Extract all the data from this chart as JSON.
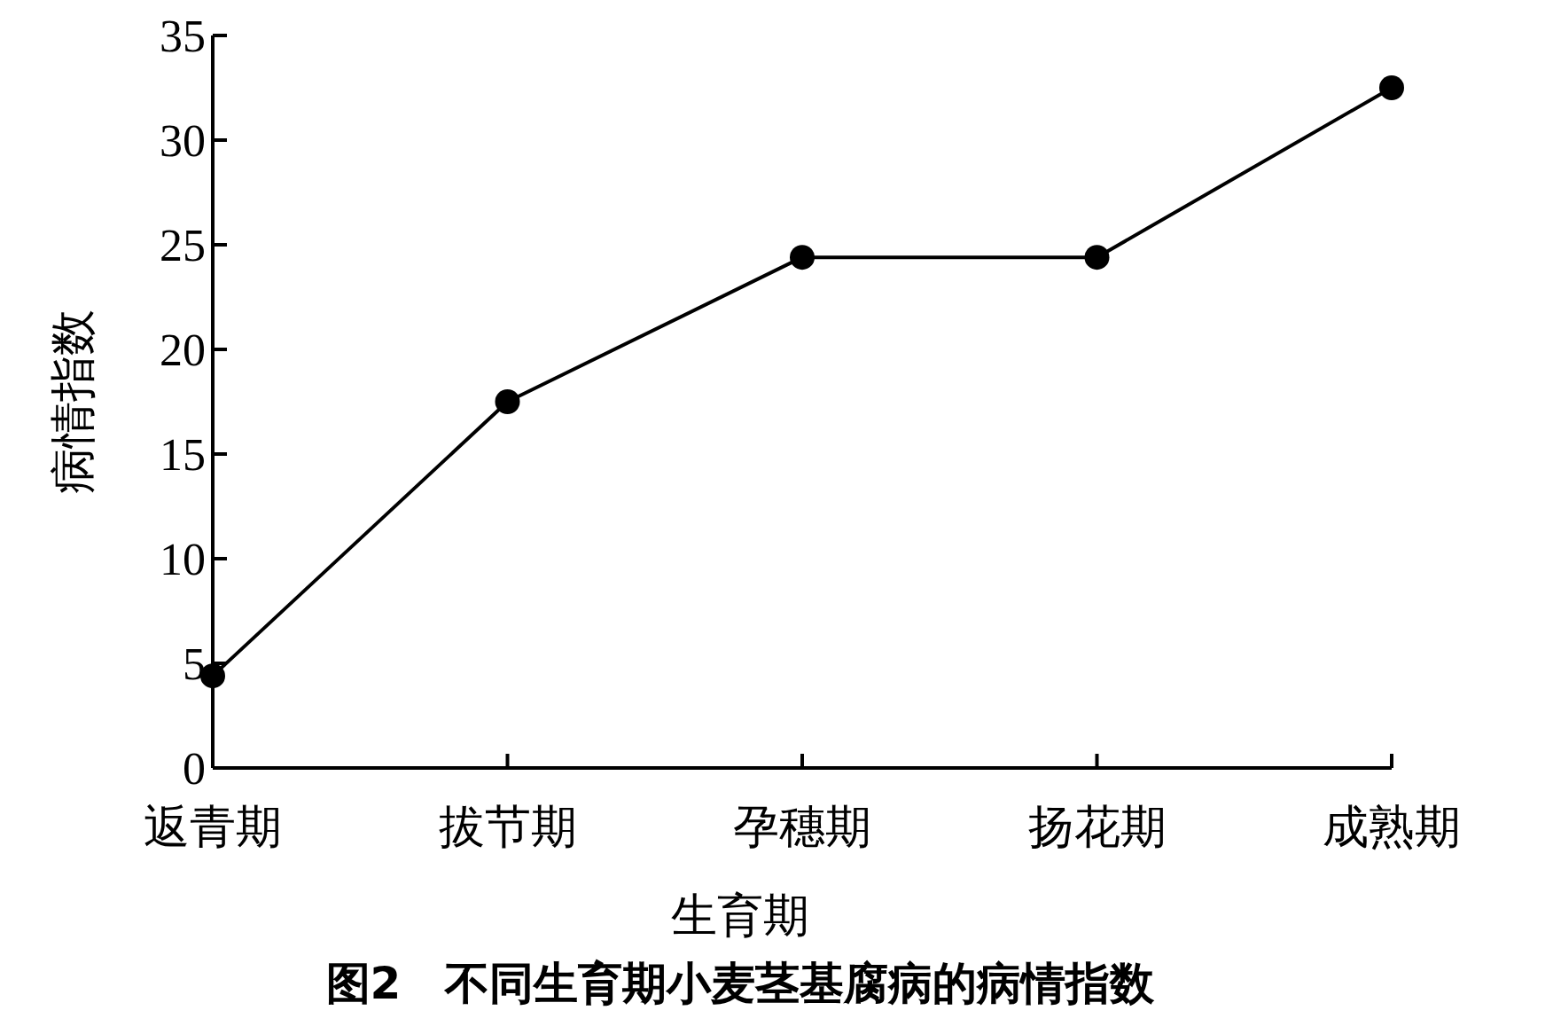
{
  "chart_data": {
    "type": "line",
    "title": "图2　不同生育期小麦茎基腐病的病情指数",
    "xlabel": "生育期",
    "ylabel": "病情指数",
    "categories": [
      "返青期",
      "拔节期",
      "孕穗期",
      "扬花期",
      "成熟期"
    ],
    "series": [
      {
        "color": "#000000",
        "values": [
          4.4,
          17.5,
          24.4,
          24.4,
          32.5
        ]
      }
    ],
    "ylim": [
      0,
      35
    ],
    "yticks": [
      0,
      5,
      10,
      15,
      20,
      25,
      30,
      35
    ],
    "grid": false,
    "marker": "circle",
    "line_style": "solid"
  }
}
